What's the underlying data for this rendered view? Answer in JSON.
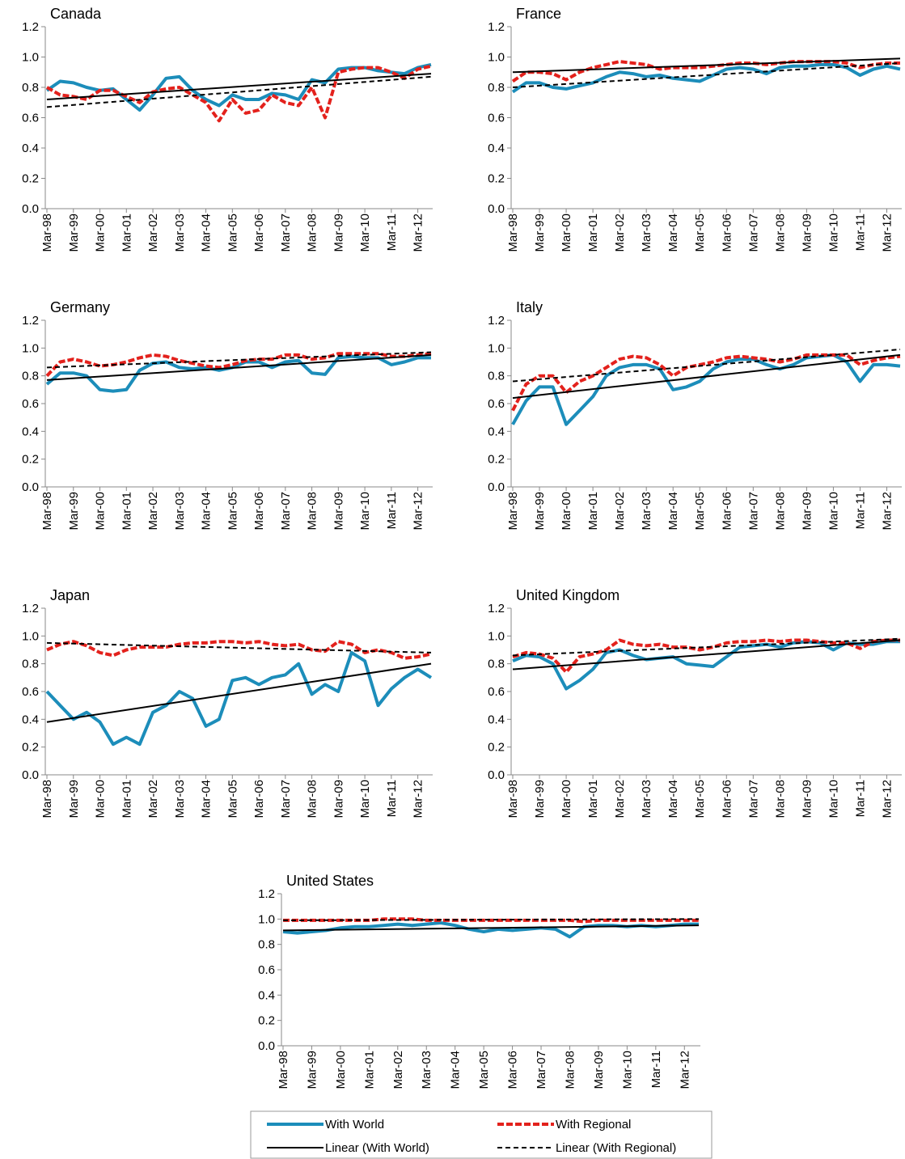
{
  "legend": [
    {
      "name": "With World",
      "color": "#1c8dba",
      "dash": false,
      "width": 4
    },
    {
      "name": "With Regional",
      "color": "#e3211c",
      "dash": true,
      "width": 4
    },
    {
      "name": "Linear (With World)",
      "color": "#000000",
      "dash": false,
      "width": 2
    },
    {
      "name": "Linear (With Regional)",
      "color": "#000000",
      "dash": true,
      "width": 2
    }
  ],
  "chart_data": [
    {
      "type": "line",
      "title": "Canada",
      "categories": [
        "Mar-98",
        null,
        "Mar-99",
        null,
        "Mar-00",
        null,
        "Mar-01",
        null,
        "Mar-02",
        null,
        "Mar-03",
        null,
        "Mar-04",
        null,
        "Mar-05",
        null,
        "Mar-06",
        null,
        "Mar-07",
        null,
        "Mar-08",
        null,
        "Mar-09",
        null,
        "Mar-10",
        null,
        "Mar-11",
        null,
        "Mar-12",
        null
      ],
      "ylim": [
        0,
        1.2
      ],
      "yticks": [
        {
          "value": 0,
          "label": "0.0"
        },
        0.2,
        0.4,
        0.6,
        0.8,
        {
          "value": 1,
          "label": "1.0"
        },
        1.2
      ],
      "series": [
        {
          "values": [
            0.78,
            0.84,
            0.83,
            0.8,
            0.78,
            0.79,
            0.72,
            0.65,
            0.75,
            0.86,
            0.87,
            0.78,
            0.72,
            0.68,
            0.75,
            0.72,
            0.72,
            0.76,
            0.75,
            0.72,
            0.85,
            0.83,
            0.92,
            0.93,
            0.93,
            0.91,
            0.9,
            0.89,
            0.93,
            0.95
          ]
        },
        {
          "values": [
            0.8,
            0.75,
            0.74,
            0.72,
            0.78,
            0.78,
            0.74,
            0.7,
            0.77,
            0.79,
            0.8,
            0.75,
            0.7,
            0.58,
            0.72,
            0.63,
            0.65,
            0.75,
            0.7,
            0.68,
            0.8,
            0.6,
            0.9,
            0.92,
            0.93,
            0.93,
            0.9,
            0.86,
            0.92,
            0.94
          ]
        }
      ],
      "trend_lines": [
        {
          "start": 0.72,
          "end": 0.89
        },
        {
          "start": 0.67,
          "end": 0.87
        }
      ]
    },
    {
      "type": "line",
      "title": "France",
      "categories": [
        "Mar-98",
        null,
        "Mar-99",
        null,
        "Mar-00",
        null,
        "Mar-01",
        null,
        "Mar-02",
        null,
        "Mar-03",
        null,
        "Mar-04",
        null,
        "Mar-05",
        null,
        "Mar-06",
        null,
        "Mar-07",
        null,
        "Mar-08",
        null,
        "Mar-09",
        null,
        "Mar-10",
        null,
        "Mar-11",
        null,
        "Mar-12",
        null
      ],
      "ylim": [
        0,
        1.2
      ],
      "yticks": [
        {
          "value": 0,
          "label": "0.0"
        },
        0.2,
        0.4,
        0.6,
        0.8,
        {
          "value": 1,
          "label": "1.0"
        },
        1.2
      ],
      "series": [
        {
          "values": [
            0.77,
            0.83,
            0.83,
            0.8,
            0.79,
            0.81,
            0.83,
            0.87,
            0.9,
            0.89,
            0.87,
            0.88,
            0.86,
            0.85,
            0.84,
            0.88,
            0.92,
            0.93,
            0.92,
            0.89,
            0.93,
            0.94,
            0.94,
            0.95,
            0.95,
            0.93,
            0.88,
            0.92,
            0.94,
            0.92
          ]
        },
        {
          "values": [
            0.84,
            0.9,
            0.9,
            0.89,
            0.85,
            0.9,
            0.93,
            0.95,
            0.97,
            0.96,
            0.95,
            0.92,
            0.93,
            0.93,
            0.93,
            0.94,
            0.95,
            0.96,
            0.96,
            0.95,
            0.96,
            0.97,
            0.97,
            0.97,
            0.97,
            0.96,
            0.93,
            0.95,
            0.96,
            0.96
          ]
        }
      ],
      "trend_lines": [
        {
          "start": 0.9,
          "end": 0.99
        },
        {
          "start": 0.8,
          "end": 0.96
        }
      ]
    },
    {
      "type": "line",
      "title": "Germany",
      "categories": [
        "Mar-98",
        null,
        "Mar-99",
        null,
        "Mar-00",
        null,
        "Mar-01",
        null,
        "Mar-02",
        null,
        "Mar-03",
        null,
        "Mar-04",
        null,
        "Mar-05",
        null,
        "Mar-06",
        null,
        "Mar-07",
        null,
        "Mar-08",
        null,
        "Mar-09",
        null,
        "Mar-10",
        null,
        "Mar-11",
        null,
        "Mar-12",
        null
      ],
      "ylim": [
        0,
        1.2
      ],
      "yticks": [
        {
          "value": 0,
          "label": "0.0"
        },
        0.2,
        0.4,
        0.6,
        0.8,
        {
          "value": 1,
          "label": "1.0"
        },
        1.2
      ],
      "series": [
        {
          "values": [
            0.74,
            0.82,
            0.82,
            0.8,
            0.7,
            0.69,
            0.7,
            0.84,
            0.89,
            0.9,
            0.86,
            0.85,
            0.86,
            0.84,
            0.86,
            0.9,
            0.9,
            0.86,
            0.9,
            0.91,
            0.82,
            0.81,
            0.93,
            0.94,
            0.93,
            0.93,
            0.88,
            0.9,
            0.93,
            0.93
          ]
        },
        {
          "values": [
            0.8,
            0.9,
            0.92,
            0.9,
            0.87,
            0.88,
            0.9,
            0.93,
            0.95,
            0.94,
            0.91,
            0.89,
            0.87,
            0.86,
            0.88,
            0.91,
            0.92,
            0.92,
            0.95,
            0.95,
            0.92,
            0.93,
            0.96,
            0.96,
            0.96,
            0.96,
            0.94,
            0.94,
            0.95,
            0.96
          ]
        }
      ],
      "trend_lines": [
        {
          "start": 0.77,
          "end": 0.95
        },
        {
          "start": 0.86,
          "end": 0.97
        }
      ]
    },
    {
      "type": "line",
      "title": "Italy",
      "categories": [
        "Mar-98",
        null,
        "Mar-99",
        null,
        "Mar-00",
        null,
        "Mar-01",
        null,
        "Mar-02",
        null,
        "Mar-03",
        null,
        "Mar-04",
        null,
        "Mar-05",
        null,
        "Mar-06",
        null,
        "Mar-07",
        null,
        "Mar-08",
        null,
        "Mar-09",
        null,
        "Mar-10",
        null,
        "Mar-11",
        null,
        "Mar-12",
        null
      ],
      "ylim": [
        0,
        1.2
      ],
      "yticks": [
        {
          "value": 0,
          "label": "0.0"
        },
        0.2,
        0.4,
        0.6,
        0.8,
        {
          "value": 1,
          "label": "1.0"
        },
        1.2
      ],
      "series": [
        {
          "values": [
            0.45,
            0.62,
            0.72,
            0.72,
            0.45,
            0.55,
            0.65,
            0.8,
            0.86,
            0.88,
            0.88,
            0.85,
            0.7,
            0.72,
            0.76,
            0.85,
            0.9,
            0.92,
            0.92,
            0.88,
            0.85,
            0.88,
            0.93,
            0.94,
            0.95,
            0.9,
            0.76,
            0.88,
            0.88,
            0.87
          ]
        },
        {
          "values": [
            0.55,
            0.74,
            0.8,
            0.8,
            0.68,
            0.76,
            0.8,
            0.86,
            0.92,
            0.94,
            0.93,
            0.88,
            0.8,
            0.86,
            0.88,
            0.9,
            0.93,
            0.94,
            0.93,
            0.92,
            0.9,
            0.92,
            0.95,
            0.95,
            0.95,
            0.95,
            0.88,
            0.91,
            0.93,
            0.94
          ]
        }
      ],
      "trend_lines": [
        {
          "start": 0.64,
          "end": 0.95
        },
        {
          "start": 0.76,
          "end": 0.99
        }
      ]
    },
    {
      "type": "line",
      "title": "Japan",
      "categories": [
        "Mar-98",
        null,
        "Mar-99",
        null,
        "Mar-00",
        null,
        "Mar-01",
        null,
        "Mar-02",
        null,
        "Mar-03",
        null,
        "Mar-04",
        null,
        "Mar-05",
        null,
        "Mar-06",
        null,
        "Mar-07",
        null,
        "Mar-08",
        null,
        "Mar-09",
        null,
        "Mar-10",
        null,
        "Mar-11",
        null,
        "Mar-12",
        null
      ],
      "ylim": [
        0,
        1.2
      ],
      "yticks": [
        {
          "value": 0,
          "label": "0.0"
        },
        0.2,
        0.4,
        0.6,
        0.8,
        {
          "value": 1,
          "label": "1.0"
        },
        1.2
      ],
      "series": [
        {
          "values": [
            0.6,
            0.5,
            0.4,
            0.45,
            0.38,
            0.22,
            0.27,
            0.22,
            0.45,
            0.5,
            0.6,
            0.55,
            0.35,
            0.4,
            0.68,
            0.7,
            0.65,
            0.7,
            0.72,
            0.8,
            0.58,
            0.65,
            0.6,
            0.88,
            0.82,
            0.5,
            0.62,
            0.7,
            0.76,
            0.7
          ]
        },
        {
          "values": [
            0.9,
            0.94,
            0.96,
            0.93,
            0.88,
            0.86,
            0.9,
            0.92,
            0.92,
            0.92,
            0.94,
            0.95,
            0.95,
            0.96,
            0.96,
            0.95,
            0.96,
            0.94,
            0.93,
            0.94,
            0.9,
            0.89,
            0.96,
            0.94,
            0.88,
            0.9,
            0.88,
            0.84,
            0.85,
            0.87
          ]
        }
      ],
      "trend_lines": [
        {
          "start": 0.38,
          "end": 0.8
        },
        {
          "start": 0.95,
          "end": 0.88
        }
      ]
    },
    {
      "type": "line",
      "title": "United Kingdom",
      "categories": [
        "Mar-98",
        null,
        "Mar-99",
        null,
        "Mar-00",
        null,
        "Mar-01",
        null,
        "Mar-02",
        null,
        "Mar-03",
        null,
        "Mar-04",
        null,
        "Mar-05",
        null,
        "Mar-06",
        null,
        "Mar-07",
        null,
        "Mar-08",
        null,
        "Mar-09",
        null,
        "Mar-10",
        null,
        "Mar-11",
        null,
        "Mar-12",
        null
      ],
      "ylim": [
        0,
        1.2
      ],
      "yticks": [
        {
          "value": 0,
          "label": "0.0"
        },
        0.2,
        0.4,
        0.6,
        0.8,
        {
          "value": 1,
          "label": "1.0"
        },
        1.2
      ],
      "series": [
        {
          "values": [
            0.82,
            0.86,
            0.85,
            0.8,
            0.62,
            0.68,
            0.76,
            0.88,
            0.9,
            0.86,
            0.83,
            0.84,
            0.85,
            0.8,
            0.79,
            0.78,
            0.85,
            0.92,
            0.93,
            0.94,
            0.92,
            0.95,
            0.96,
            0.95,
            0.9,
            0.95,
            0.94,
            0.94,
            0.96,
            0.96
          ]
        },
        {
          "values": [
            0.85,
            0.88,
            0.87,
            0.84,
            0.74,
            0.85,
            0.87,
            0.9,
            0.97,
            0.94,
            0.93,
            0.94,
            0.92,
            0.92,
            0.9,
            0.92,
            0.95,
            0.96,
            0.96,
            0.97,
            0.96,
            0.97,
            0.97,
            0.96,
            0.95,
            0.95,
            0.91,
            0.96,
            0.97,
            0.97
          ]
        }
      ],
      "trend_lines": [
        {
          "start": 0.76,
          "end": 0.97
        },
        {
          "start": 0.86,
          "end": 0.98
        }
      ]
    },
    {
      "type": "line",
      "title": "United States",
      "categories": [
        "Mar-98",
        null,
        "Mar-99",
        null,
        "Mar-00",
        null,
        "Mar-01",
        null,
        "Mar-02",
        null,
        "Mar-03",
        null,
        "Mar-04",
        null,
        "Mar-05",
        null,
        "Mar-06",
        null,
        "Mar-07",
        null,
        "Mar-08",
        null,
        "Mar-09",
        null,
        "Mar-10",
        null,
        "Mar-11",
        null,
        "Mar-12",
        null
      ],
      "ylim": [
        0,
        1.2
      ],
      "yticks": [
        {
          "value": 0,
          "label": "0.0"
        },
        0.2,
        0.4,
        0.6,
        0.8,
        {
          "value": 1,
          "label": "1.0"
        },
        1.2
      ],
      "series": [
        {
          "values": [
            0.9,
            0.89,
            0.9,
            0.91,
            0.93,
            0.94,
            0.94,
            0.95,
            0.96,
            0.95,
            0.96,
            0.97,
            0.95,
            0.92,
            0.9,
            0.92,
            0.91,
            0.92,
            0.93,
            0.92,
            0.86,
            0.94,
            0.95,
            0.95,
            0.94,
            0.95,
            0.94,
            0.95,
            0.96,
            0.96
          ]
        },
        {
          "values": [
            0.99,
            0.99,
            0.99,
            0.99,
            0.99,
            0.99,
            0.99,
            1.0,
            1.0,
            1.0,
            0.99,
            0.99,
            0.99,
            0.99,
            0.99,
            0.99,
            0.99,
            0.99,
            0.99,
            0.99,
            0.99,
            0.98,
            0.99,
            0.99,
            0.99,
            0.99,
            0.99,
            0.99,
            0.99,
            0.99
          ]
        }
      ],
      "trend_lines": [
        {
          "start": 0.91,
          "end": 0.95
        },
        {
          "start": 0.99,
          "end": 1.0
        }
      ]
    }
  ]
}
